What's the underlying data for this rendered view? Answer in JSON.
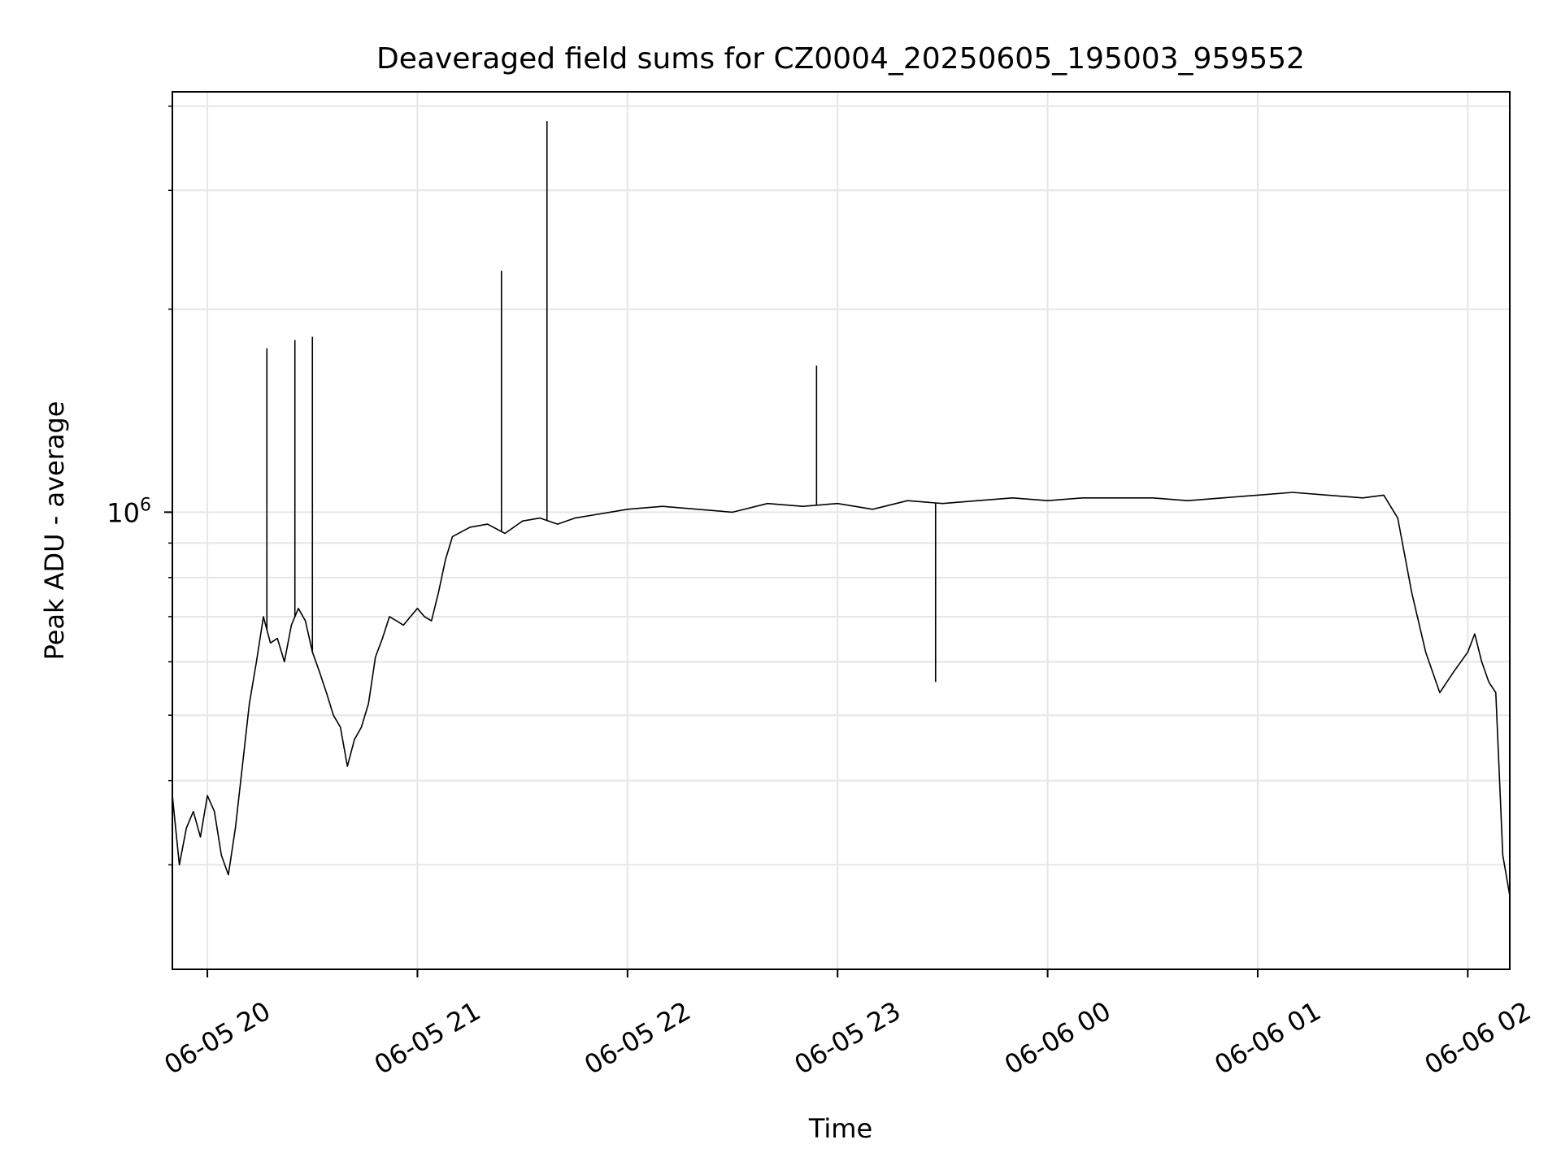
{
  "chart_data": {
    "type": "line",
    "title": "Deaveraged field sums for CZ0004_20250605_195003_959552",
    "xlabel": "Time",
    "ylabel": "Peak ADU - average",
    "xlim": [
      "2025-06-05 19:50:00",
      "2025-06-06 02:12:00"
    ],
    "ylim": [
      210000,
      4200000
    ],
    "yscale": "log",
    "grid": true,
    "x_ticks": [
      {
        "value": "2025-06-05 20:00",
        "label": "06-05 20"
      },
      {
        "value": "2025-06-05 21:00",
        "label": "06-05 21"
      },
      {
        "value": "2025-06-05 22:00",
        "label": "06-05 22"
      },
      {
        "value": "2025-06-05 23:00",
        "label": "06-05 23"
      },
      {
        "value": "2025-06-06 00:00",
        "label": "06-06 00"
      },
      {
        "value": "2025-06-06 01:00",
        "label": "06-06 01"
      },
      {
        "value": "2025-06-06 02:00",
        "label": "06-06 02"
      }
    ],
    "y_ticks": [
      {
        "value": 1000000,
        "label_base": "10",
        "label_exp": "6"
      }
    ],
    "series": [
      {
        "color": "#000000",
        "x": [
          "2025-06-05 19:50:00",
          "2025-06-05 19:52:00",
          "2025-06-05 19:54:00",
          "2025-06-05 19:56:00",
          "2025-06-05 19:58:00",
          "2025-06-05 20:00:00",
          "2025-06-05 20:02:00",
          "2025-06-05 20:04:00",
          "2025-06-05 20:06:00",
          "2025-06-05 20:08:00",
          "2025-06-05 20:10:00",
          "2025-06-05 20:12:00",
          "2025-06-05 20:14:00",
          "2025-06-05 20:16:00",
          "2025-06-05 20:18:00",
          "2025-06-05 20:20:00",
          "2025-06-05 20:22:00",
          "2025-06-05 20:24:00",
          "2025-06-05 20:26:00",
          "2025-06-05 20:28:00",
          "2025-06-05 20:30:00",
          "2025-06-05 20:32:00",
          "2025-06-05 20:34:00",
          "2025-06-05 20:36:00",
          "2025-06-05 20:38:00",
          "2025-06-05 20:40:00",
          "2025-06-05 20:42:00",
          "2025-06-05 20:44:00",
          "2025-06-05 20:46:00",
          "2025-06-05 20:48:00",
          "2025-06-05 20:50:00",
          "2025-06-05 20:52:00",
          "2025-06-05 20:54:00",
          "2025-06-05 20:56:00",
          "2025-06-05 20:58:00",
          "2025-06-05 21:00:00",
          "2025-06-05 21:02:00",
          "2025-06-05 21:04:00",
          "2025-06-05 21:06:00",
          "2025-06-05 21:08:00",
          "2025-06-05 21:10:00",
          "2025-06-05 21:15:00",
          "2025-06-05 21:20:00",
          "2025-06-05 21:25:00",
          "2025-06-05 21:30:00",
          "2025-06-05 21:35:00",
          "2025-06-05 21:40:00",
          "2025-06-05 21:45:00",
          "2025-06-05 21:50:00",
          "2025-06-05 21:55:00",
          "2025-06-05 22:00:00",
          "2025-06-05 22:10:00",
          "2025-06-05 22:20:00",
          "2025-06-05 22:30:00",
          "2025-06-05 22:40:00",
          "2025-06-05 22:50:00",
          "2025-06-05 23:00:00",
          "2025-06-05 23:10:00",
          "2025-06-05 23:20:00",
          "2025-06-05 23:30:00",
          "2025-06-05 23:40:00",
          "2025-06-05 23:50:00",
          "2025-06-06 00:00:00",
          "2025-06-06 00:10:00",
          "2025-06-06 00:20:00",
          "2025-06-06 00:30:00",
          "2025-06-06 00:40:00",
          "2025-06-06 00:50:00",
          "2025-06-06 01:00:00",
          "2025-06-06 01:10:00",
          "2025-06-06 01:20:00",
          "2025-06-06 01:30:00",
          "2025-06-06 01:36:00",
          "2025-06-06 01:40:00",
          "2025-06-06 01:44:00",
          "2025-06-06 01:48:00",
          "2025-06-06 01:52:00",
          "2025-06-06 01:56:00",
          "2025-06-06 02:00:00",
          "2025-06-06 02:02:00",
          "2025-06-06 02:04:00",
          "2025-06-06 02:06:00",
          "2025-06-06 02:08:00",
          "2025-06-06 02:10:00",
          "2025-06-06 02:12:00"
        ],
        "values": [
          380000,
          300000,
          340000,
          360000,
          330000,
          380000,
          360000,
          310000,
          290000,
          340000,
          420000,
          520000,
          600000,
          700000,
          640000,
          650000,
          600000,
          680000,
          720000,
          690000,
          620000,
          580000,
          540000,
          500000,
          480000,
          420000,
          460000,
          480000,
          520000,
          610000,
          650000,
          700000,
          690000,
          680000,
          700000,
          720000,
          700000,
          690000,
          760000,
          850000,
          920000,
          950000,
          960000,
          930000,
          970000,
          980000,
          960000,
          980000,
          990000,
          1000000,
          1010000,
          1020000,
          1010000,
          1000000,
          1030000,
          1020000,
          1030000,
          1010000,
          1040000,
          1030000,
          1040000,
          1050000,
          1040000,
          1050000,
          1050000,
          1050000,
          1040000,
          1050000,
          1060000,
          1070000,
          1060000,
          1050000,
          1060000,
          980000,
          760000,
          620000,
          540000,
          580000,
          620000,
          660000,
          600000,
          560000,
          540000,
          310000,
          270000
        ]
      }
    ],
    "annotations_spikes": [
      {
        "x": "2025-06-05 20:17:00",
        "value": 1750000
      },
      {
        "x": "2025-06-05 20:25:00",
        "value": 1800000
      },
      {
        "x": "2025-06-05 20:30:00",
        "value": 1820000
      },
      {
        "x": "2025-06-05 21:24:00",
        "value": 2280000
      },
      {
        "x": "2025-06-05 21:37:00",
        "value": 3800000
      },
      {
        "x": "2025-06-05 22:54:00",
        "value": 1650000
      },
      {
        "x": "2025-06-05 23:28:00",
        "value": 560000
      }
    ]
  }
}
